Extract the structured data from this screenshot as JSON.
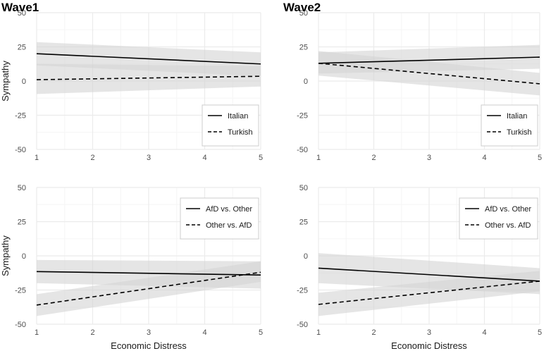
{
  "wave_titles": [
    "Wave1",
    "Wave2"
  ],
  "colors": {
    "line": "#000000",
    "band": "#d3d3d3",
    "grid": "#ebebeb",
    "grid_minor": "#f5f5f5",
    "legend_border": "#cccccc",
    "tick_text": "#4d4d4d"
  },
  "chart_data": [
    {
      "type": "line",
      "id": "wave1-origin",
      "wave": "Wave1",
      "xlabel": "",
      "ylabel": "Sympathy",
      "xlim": [
        1,
        5
      ],
      "ylim": [
        -50,
        50
      ],
      "xticks": [
        1,
        2,
        3,
        4,
        5
      ],
      "yticks": [
        -50,
        -25,
        0,
        25,
        50
      ],
      "grid": true,
      "legend_position": "bottom-right",
      "series": [
        {
          "name": "Italian",
          "linestyle": "solid",
          "x": [
            1,
            5
          ],
          "y": [
            20,
            12.5
          ],
          "ci_lower": [
            11.5,
            3.5
          ],
          "ci_upper": [
            28.5,
            21
          ]
        },
        {
          "name": "Turkish",
          "linestyle": "dashed",
          "x": [
            1,
            5
          ],
          "y": [
            1,
            3.5
          ],
          "ci_lower": [
            -9.5,
            -4
          ],
          "ci_upper": [
            12.5,
            11
          ]
        }
      ]
    },
    {
      "type": "line",
      "id": "wave2-origin",
      "wave": "Wave2",
      "xlabel": "",
      "ylabel": "",
      "xlim": [
        1,
        5
      ],
      "ylim": [
        -50,
        50
      ],
      "xticks": [
        1,
        2,
        3,
        4,
        5
      ],
      "yticks": [
        -50,
        -25,
        0,
        25,
        50
      ],
      "grid": true,
      "legend_position": "bottom-right",
      "series": [
        {
          "name": "Italian",
          "linestyle": "solid",
          "x": [
            1,
            5
          ],
          "y": [
            13,
            17.5
          ],
          "ci_lower": [
            5.5,
            9
          ],
          "ci_upper": [
            21,
            26.5
          ]
        },
        {
          "name": "Turkish",
          "linestyle": "dashed",
          "x": [
            1,
            5
          ],
          "y": [
            13,
            -2
          ],
          "ci_lower": [
            4,
            -10.5
          ],
          "ci_upper": [
            22,
            6
          ]
        }
      ]
    },
    {
      "type": "line",
      "id": "wave1-party",
      "wave": "Wave1",
      "xlabel": "Economic Distress",
      "ylabel": "Sympathy",
      "xlim": [
        1,
        5
      ],
      "ylim": [
        -50,
        50
      ],
      "xticks": [
        1,
        2,
        3,
        4,
        5
      ],
      "yticks": [
        -50,
        -25,
        0,
        25,
        50
      ],
      "grid": true,
      "legend_position": "top-right",
      "series": [
        {
          "name": "AfD vs. Other",
          "linestyle": "solid",
          "x": [
            1,
            5
          ],
          "y": [
            -11.5,
            -14
          ],
          "ci_lower": [
            -20,
            -24
          ],
          "ci_upper": [
            -3,
            -4
          ]
        },
        {
          "name": "Other vs. AfD",
          "linestyle": "dashed",
          "x": [
            1,
            5
          ],
          "y": [
            -36,
            -12
          ],
          "ci_lower": [
            -44,
            -19
          ],
          "ci_upper": [
            -28,
            -4
          ]
        }
      ]
    },
    {
      "type": "line",
      "id": "wave2-party",
      "wave": "Wave2",
      "xlabel": "Economic Distress",
      "ylabel": "",
      "xlim": [
        1,
        5
      ],
      "ylim": [
        -50,
        50
      ],
      "xticks": [
        1,
        2,
        3,
        4,
        5
      ],
      "yticks": [
        -50,
        -25,
        0,
        25,
        50
      ],
      "grid": true,
      "legend_position": "top-right",
      "series": [
        {
          "name": "AfD vs. Other",
          "linestyle": "solid",
          "x": [
            1,
            5
          ],
          "y": [
            -9,
            -18.5
          ],
          "ci_lower": [
            -20,
            -28
          ],
          "ci_upper": [
            2,
            -9
          ]
        },
        {
          "name": "Other vs. AfD",
          "linestyle": "dashed",
          "x": [
            1,
            5
          ],
          "y": [
            -35.5,
            -18.5
          ],
          "ci_lower": [
            -44,
            -26
          ],
          "ci_upper": [
            -27,
            -11
          ]
        }
      ]
    }
  ]
}
